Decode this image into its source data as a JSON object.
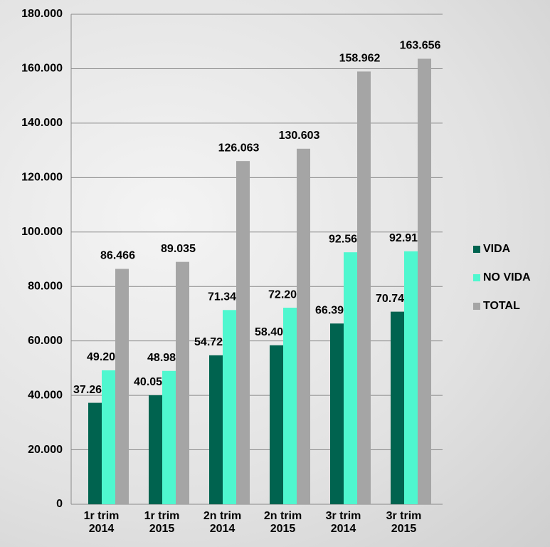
{
  "chart_data": {
    "type": "bar",
    "categories": [
      "1r trim\n2014",
      "1r trim\n2015",
      "2n trim\n2014",
      "2n trim\n2015",
      "3r trim\n2014",
      "3r trim\n2015"
    ],
    "series": [
      {
        "name": "VIDA",
        "color": "#00634f",
        "values": [
          37262,
          40051,
          54720,
          58403,
          66394,
          70741
        ],
        "value_labels": [
          "37.262",
          "40.051",
          "54.720",
          "58.403",
          "66.394",
          "70.741"
        ]
      },
      {
        "name": "NO VIDA",
        "color": "#4ff7cf",
        "values": [
          49204,
          48985,
          71343,
          72200,
          92568,
          92916
        ],
        "value_labels": [
          "49.204",
          "48.985",
          "71.343",
          "72.200",
          "92.568",
          "92.916"
        ]
      },
      {
        "name": "TOTAL",
        "color": "#a5a5a5",
        "values": [
          86466,
          89035,
          126063,
          130603,
          158962,
          163656
        ],
        "value_labels": [
          "86.466",
          "89.035",
          "126.063",
          "130.603",
          "158.962",
          "163.656"
        ]
      }
    ],
    "ylim": [
      0,
      180000
    ],
    "yticks": [
      0,
      {
        "value": 20000,
        "label": "20.000"
      },
      {
        "value": 40000,
        "label": "40.000"
      },
      {
        "value": 60000,
        "label": "60.000"
      },
      {
        "value": 80000,
        "label": "80.000"
      },
      {
        "value": 100000,
        "label": "100.000"
      },
      {
        "value": 120000,
        "label": "120.000"
      },
      {
        "value": 140000,
        "label": "140.000"
      },
      {
        "value": 160000,
        "label": "160.000"
      },
      {
        "value": 180000,
        "label": "180.000"
      }
    ],
    "grid": true,
    "legend": "right"
  }
}
